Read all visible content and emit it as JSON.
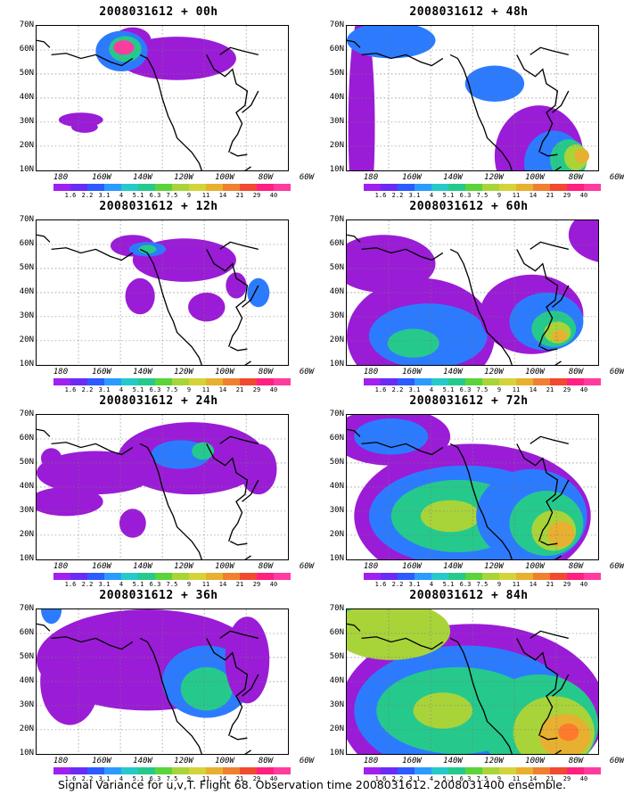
{
  "panels": [
    {
      "title": "2008031612 + 00h",
      "blobs": [
        [
          190,
          105,
          80,
          30,
          "#9b1cd6"
        ],
        [
          130,
          80,
          25,
          18,
          "#9b1cd6"
        ],
        [
          60,
          190,
          30,
          10,
          "#9b1cd6"
        ],
        [
          115,
          95,
          35,
          28,
          "#2c7bff"
        ],
        [
          120,
          92,
          22,
          18,
          "#26c98c"
        ],
        [
          118,
          90,
          14,
          10,
          "#ff3ba0"
        ],
        [
          65,
          200,
          18,
          8,
          "#9b1cd6"
        ]
      ]
    },
    {
      "title": "2008031612 + 48h",
      "blobs": [
        [
          20,
          200,
          18,
          160,
          "#9b1cd6"
        ],
        [
          60,
          80,
          60,
          25,
          "#2c7bff"
        ],
        [
          95,
          45,
          30,
          14,
          "#9b1cd6"
        ],
        [
          260,
          240,
          60,
          70,
          "#9b1cd6"
        ],
        [
          280,
          250,
          40,
          45,
          "#2c7bff"
        ],
        [
          300,
          245,
          25,
          28,
          "#26c98c"
        ],
        [
          310,
          242,
          16,
          18,
          "#a8d43a"
        ],
        [
          318,
          240,
          10,
          10,
          "#e8b030"
        ],
        [
          420,
          90,
          60,
          60,
          "#9b1cd6"
        ],
        [
          440,
          100,
          30,
          30,
          "#2c7bff"
        ],
        [
          200,
          140,
          40,
          25,
          "#2c7bff"
        ]
      ]
    },
    {
      "title": "2008031612 + 12h",
      "blobs": [
        [
          200,
          115,
          70,
          30,
          "#9b1cd6"
        ],
        [
          130,
          95,
          30,
          15,
          "#9b1cd6"
        ],
        [
          150,
          100,
          25,
          10,
          "#2c7bff"
        ],
        [
          150,
          100,
          12,
          6,
          "#26c98c"
        ],
        [
          230,
          180,
          25,
          20,
          "#9b1cd6"
        ],
        [
          140,
          165,
          20,
          25,
          "#9b1cd6"
        ],
        [
          270,
          150,
          14,
          18,
          "#9b1cd6"
        ],
        [
          300,
          160,
          15,
          20,
          "#2c7bff"
        ]
      ]
    },
    {
      "title": "2008031612 + 60h",
      "blobs": [
        [
          100,
          220,
          100,
          80,
          "#9b1cd6"
        ],
        [
          110,
          220,
          80,
          45,
          "#2c7bff"
        ],
        [
          90,
          230,
          35,
          20,
          "#26c98c"
        ],
        [
          250,
          190,
          70,
          55,
          "#9b1cd6"
        ],
        [
          270,
          200,
          50,
          40,
          "#2c7bff"
        ],
        [
          280,
          210,
          30,
          25,
          "#26c98c"
        ],
        [
          285,
          215,
          18,
          15,
          "#a8d43a"
        ],
        [
          288,
          220,
          10,
          8,
          "#e8b030"
        ],
        [
          50,
          120,
          70,
          40,
          "#9b1cd6"
        ],
        [
          360,
          80,
          60,
          40,
          "#9b1cd6"
        ]
      ]
    },
    {
      "title": "2008031612 + 24h",
      "blobs": [
        [
          210,
          120,
          100,
          50,
          "#9b1cd6"
        ],
        [
          195,
          115,
          40,
          20,
          "#2c7bff"
        ],
        [
          225,
          110,
          15,
          12,
          "#26c98c"
        ],
        [
          80,
          140,
          80,
          30,
          "#9b1cd6"
        ],
        [
          40,
          180,
          50,
          20,
          "#9b1cd6"
        ],
        [
          20,
          120,
          14,
          14,
          "#9b1cd6"
        ],
        [
          300,
          135,
          25,
          35,
          "#9b1cd6"
        ],
        [
          130,
          210,
          18,
          20,
          "#9b1cd6"
        ]
      ]
    },
    {
      "title": "2008031612 + 72h",
      "blobs": [
        [
          170,
          200,
          160,
          100,
          "#9b1cd6"
        ],
        [
          160,
          200,
          130,
          70,
          "#2c7bff"
        ],
        [
          150,
          200,
          90,
          50,
          "#26c98c"
        ],
        [
          140,
          200,
          40,
          22,
          "#a8d43a"
        ],
        [
          250,
          200,
          75,
          65,
          "#2c7bff"
        ],
        [
          270,
          210,
          50,
          45,
          "#26c98c"
        ],
        [
          280,
          220,
          30,
          28,
          "#a8d43a"
        ],
        [
          290,
          225,
          18,
          18,
          "#e8b030"
        ],
        [
          60,
          90,
          80,
          40,
          "#9b1cd6"
        ],
        [
          60,
          90,
          50,
          25,
          "#2c7bff"
        ]
      ]
    },
    {
      "title": "2008031612 + 36h",
      "blobs": [
        [
          150,
          130,
          150,
          70,
          "#9b1cd6"
        ],
        [
          140,
          150,
          90,
          40,
          "#9b1cd6"
        ],
        [
          230,
          160,
          60,
          50,
          "#2c7bff"
        ],
        [
          230,
          170,
          35,
          30,
          "#26c98c"
        ],
        [
          45,
          160,
          40,
          60,
          "#9b1cd6"
        ],
        [
          285,
          130,
          30,
          60,
          "#9b1cd6"
        ],
        [
          20,
          60,
          14,
          20,
          "#2c7bff"
        ]
      ]
    },
    {
      "title": "2008031612 + 84h",
      "blobs": [
        [
          170,
          200,
          180,
          120,
          "#9b1cd6"
        ],
        [
          160,
          200,
          150,
          90,
          "#2c7bff"
        ],
        [
          150,
          200,
          110,
          60,
          "#26c98c"
        ],
        [
          130,
          200,
          40,
          25,
          "#a8d43a"
        ],
        [
          260,
          220,
          80,
          70,
          "#26c98c"
        ],
        [
          280,
          230,
          55,
          50,
          "#a8d43a"
        ],
        [
          295,
          235,
          35,
          30,
          "#e8b030"
        ],
        [
          300,
          230,
          14,
          12,
          "#ff7a2a"
        ],
        [
          40,
          60,
          50,
          40,
          "#26c98c"
        ],
        [
          60,
          90,
          80,
          40,
          "#a8d43a"
        ]
      ]
    }
  ],
  "axes": {
    "y_labels": [
      "70N",
      "60N",
      "50N",
      "40N",
      "30N",
      "20N",
      "10N"
    ],
    "x_labels": [
      "180",
      "160W",
      "140W",
      "120W",
      "100W",
      "80W",
      "60W"
    ]
  },
  "colorbar": {
    "colors": [
      "#a020f0",
      "#6a2cf5",
      "#2c5bff",
      "#2c9bff",
      "#26c9c9",
      "#26c98c",
      "#5ad43a",
      "#a8d43a",
      "#d4d43a",
      "#e8b030",
      "#f08030",
      "#f04a30",
      "#ff2080",
      "#ff3ba0"
    ],
    "values": [
      "1.6",
      "2.2",
      "3.1",
      "4",
      "5.1",
      "6.3",
      "7.5",
      "9",
      "11",
      "14",
      "21",
      "29",
      "40"
    ]
  },
  "caption": "Signal Variance for u,v,T. Flight 68. Observation time 2008031612. 2008031400 ensemble."
}
